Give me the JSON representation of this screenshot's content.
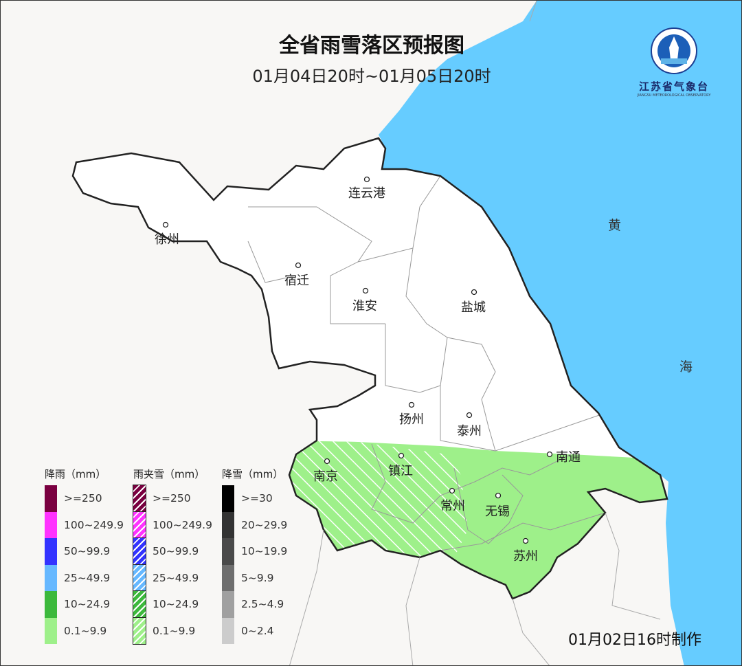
{
  "title": "全省雨雪落区预报图",
  "subtitle": "01月04日20时~01月05日20时",
  "footer": "01月02日16时制作",
  "logo": {
    "name": "江苏省气象台",
    "sub": "JIANGSU METEOROLOGICAL OBSERVATORY"
  },
  "sea_labels": [
    "黄",
    "海"
  ],
  "cities": [
    "连云港",
    "徐州",
    "宿迁",
    "淮安",
    "盐城",
    "扬州",
    "泰州",
    "南通",
    "南京",
    "镇江",
    "常州",
    "无锡",
    "苏州"
  ],
  "colors": {
    "sea": "#66ccff",
    "land": "#ffffff",
    "outside": "#f8f7f5",
    "rain_light": "#9ef08a"
  },
  "legend": [
    {
      "title": "降雨（mm）",
      "pattern": "solid",
      "items": [
        {
          "label": ">=250",
          "color": "#7a0040"
        },
        {
          "label": "100~249.9",
          "color": "#ff33ff"
        },
        {
          "label": "50~99.9",
          "color": "#3333ff"
        },
        {
          "label": "25~49.9",
          "color": "#66b8ff"
        },
        {
          "label": "10~24.9",
          "color": "#3cb93c"
        },
        {
          "label": "0.1~9.9",
          "color": "#9ef08a"
        }
      ]
    },
    {
      "title": "雨夹雪（mm）",
      "pattern": "hatched",
      "items": [
        {
          "label": ">=250",
          "color": "#7a0040"
        },
        {
          "label": "100~249.9",
          "color": "#ff33ff"
        },
        {
          "label": "50~99.9",
          "color": "#3333ff"
        },
        {
          "label": "25~49.9",
          "color": "#66b8ff"
        },
        {
          "label": "10~24.9",
          "color": "#3cb93c"
        },
        {
          "label": "0.1~9.9",
          "color": "#9ef08a"
        }
      ]
    },
    {
      "title": "降雪（mm）",
      "pattern": "solid",
      "items": [
        {
          "label": ">=30",
          "color": "#000000"
        },
        {
          "label": "20~29.9",
          "color": "#333333"
        },
        {
          "label": "10~19.9",
          "color": "#4a4a4a"
        },
        {
          "label": "5~9.9",
          "color": "#6e6e6e"
        },
        {
          "label": "2.5~4.9",
          "color": "#a0a0a0"
        },
        {
          "label": "0~2.4",
          "color": "#cccccc"
        }
      ]
    }
  ],
  "forecast": {
    "rain_0.1_9.9": "南部沿江及苏南地区",
    "sleet_0.1_9.9": "南京、镇江、常州西部"
  }
}
